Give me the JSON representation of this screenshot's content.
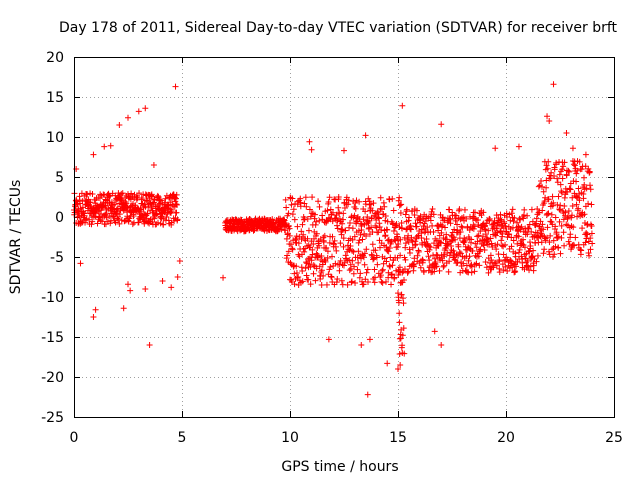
{
  "chart_data": {
    "type": "scatter",
    "title": "Day 178 of 2011, Sidereal Day-to-day VTEC variation (SDTVAR) for receiver brft",
    "xlabel": "GPS time / hours",
    "ylabel": "SDTVAR / TECUs",
    "xlim": [
      0,
      25
    ],
    "ylim": [
      -25,
      20
    ],
    "xticks": [
      0,
      5,
      10,
      15,
      20,
      25
    ],
    "yticks": [
      20,
      15,
      10,
      5,
      0,
      -5,
      -10,
      -15,
      -20,
      -25
    ],
    "grid": true,
    "marker": "plus",
    "color": "#ff0000",
    "series": [
      {
        "name": "SDTVAR",
        "dense_bands": [
          {
            "x": [
              0.0,
              4.8
            ],
            "y_center": 1.0,
            "y_spread": 2.0
          },
          {
            "x": [
              7.0,
              9.8
            ],
            "y_center": -1.0,
            "y_spread": 0.8
          },
          {
            "x": [
              9.8,
              15.2
            ],
            "y_center": -3.0,
            "y_spread": 5.5
          },
          {
            "x": [
              15.0,
              15.3
            ],
            "y_center": -12.0,
            "y_spread": 6.0
          },
          {
            "x": [
              15.3,
              21.5
            ],
            "y_center": -3.0,
            "y_spread": 4.0
          },
          {
            "x": [
              21.5,
              24.0
            ],
            "y_center": 1.0,
            "y_spread": 6.0
          }
        ],
        "points": [
          {
            "x": 0.1,
            "y": 6.0
          },
          {
            "x": 0.3,
            "y": -5.8
          },
          {
            "x": 0.9,
            "y": 7.8
          },
          {
            "x": 0.9,
            "y": -12.5
          },
          {
            "x": 1.0,
            "y": -11.6
          },
          {
            "x": 1.4,
            "y": 8.8
          },
          {
            "x": 1.7,
            "y": 8.9
          },
          {
            "x": 2.1,
            "y": 11.5
          },
          {
            "x": 2.3,
            "y": -11.4
          },
          {
            "x": 2.5,
            "y": 12.4
          },
          {
            "x": 2.5,
            "y": -8.4
          },
          {
            "x": 2.6,
            "y": -9.2
          },
          {
            "x": 3.0,
            "y": 13.2
          },
          {
            "x": 3.3,
            "y": 13.6
          },
          {
            "x": 3.3,
            "y": -9.0
          },
          {
            "x": 3.5,
            "y": -16.0
          },
          {
            "x": 3.7,
            "y": 6.5
          },
          {
            "x": 4.1,
            "y": -8.0
          },
          {
            "x": 4.5,
            "y": -8.8
          },
          {
            "x": 4.7,
            "y": 16.3
          },
          {
            "x": 4.8,
            "y": -7.5
          },
          {
            "x": 4.9,
            "y": -5.5
          },
          {
            "x": 6.9,
            "y": -7.6
          },
          {
            "x": 10.9,
            "y": 9.4
          },
          {
            "x": 11.0,
            "y": 8.4
          },
          {
            "x": 11.8,
            "y": -15.3
          },
          {
            "x": 12.5,
            "y": 8.3
          },
          {
            "x": 13.3,
            "y": -16.0
          },
          {
            "x": 13.5,
            "y": 10.2
          },
          {
            "x": 13.6,
            "y": -22.2
          },
          {
            "x": 13.7,
            "y": -15.3
          },
          {
            "x": 14.5,
            "y": -18.3
          },
          {
            "x": 15.2,
            "y": 13.9
          },
          {
            "x": 16.7,
            "y": -14.3
          },
          {
            "x": 17.0,
            "y": -16.0
          },
          {
            "x": 17.0,
            "y": 11.6
          },
          {
            "x": 19.5,
            "y": 8.6
          },
          {
            "x": 20.6,
            "y": 8.8
          },
          {
            "x": 21.9,
            "y": 12.6
          },
          {
            "x": 22.0,
            "y": 12.0
          },
          {
            "x": 22.2,
            "y": 16.6
          },
          {
            "x": 22.8,
            "y": 10.5
          },
          {
            "x": 23.1,
            "y": 8.6
          },
          {
            "x": 23.7,
            "y": 7.8
          },
          {
            "x": 15.0,
            "y": -19.0
          },
          {
            "x": 15.1,
            "y": -18.5
          },
          {
            "x": 15.2,
            "y": -17.0
          }
        ]
      }
    ]
  }
}
